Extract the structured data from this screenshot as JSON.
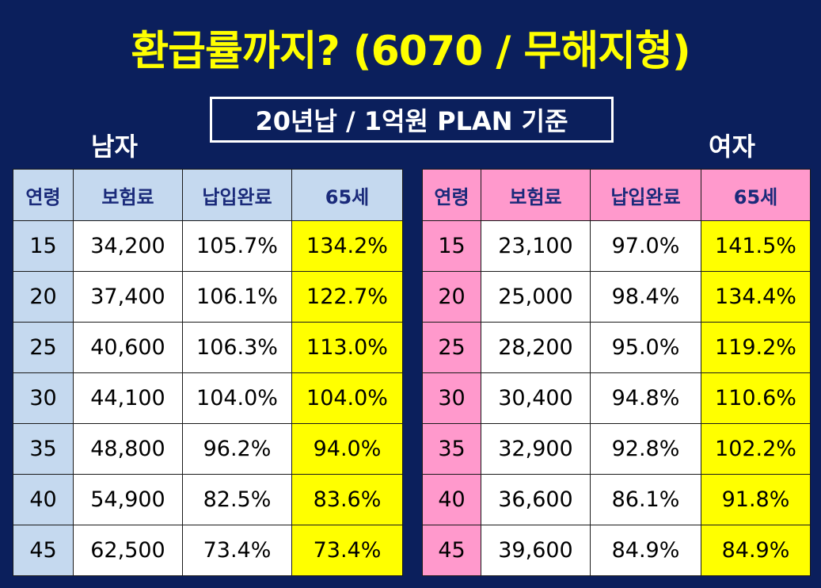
{
  "title": "환급률까지? (6070 / 무해지형)",
  "subtitle": "20년납 / 1억원 PLAN 기준",
  "male": {
    "label": "남자",
    "headers": [
      "연령",
      "보험료",
      "납입완료",
      "65세"
    ],
    "rows": [
      [
        "15",
        "34,200",
        "105.7%",
        "134.2%"
      ],
      [
        "20",
        "37,400",
        "106.1%",
        "122.7%"
      ],
      [
        "25",
        "40,600",
        "106.3%",
        "113.0%"
      ],
      [
        "30",
        "44,100",
        "104.0%",
        "104.0%"
      ],
      [
        "35",
        "48,800",
        "96.2%",
        "94.0%"
      ],
      [
        "40",
        "54,900",
        "82.5%",
        "83.6%"
      ],
      [
        "45",
        "62,500",
        "73.4%",
        "73.4%"
      ]
    ]
  },
  "female": {
    "label": "여자",
    "headers": [
      "연령",
      "보험료",
      "납입완료",
      "65세"
    ],
    "rows": [
      [
        "15",
        "23,100",
        "97.0%",
        "141.5%"
      ],
      [
        "20",
        "25,000",
        "98.4%",
        "134.4%"
      ],
      [
        "25",
        "28,200",
        "95.0%",
        "119.2%"
      ],
      [
        "30",
        "30,400",
        "94.8%",
        "110.6%"
      ],
      [
        "35",
        "32,900",
        "92.8%",
        "102.2%"
      ],
      [
        "40",
        "36,600",
        "86.1%",
        "91.8%"
      ],
      [
        "45",
        "39,600",
        "84.9%",
        "84.9%"
      ]
    ]
  },
  "colors": {
    "background": "#0b1f5c",
    "title": "#ffff00",
    "male_header": "#c5d9ef",
    "female_header": "#ff99cc",
    "highlight": "#ffff00"
  }
}
